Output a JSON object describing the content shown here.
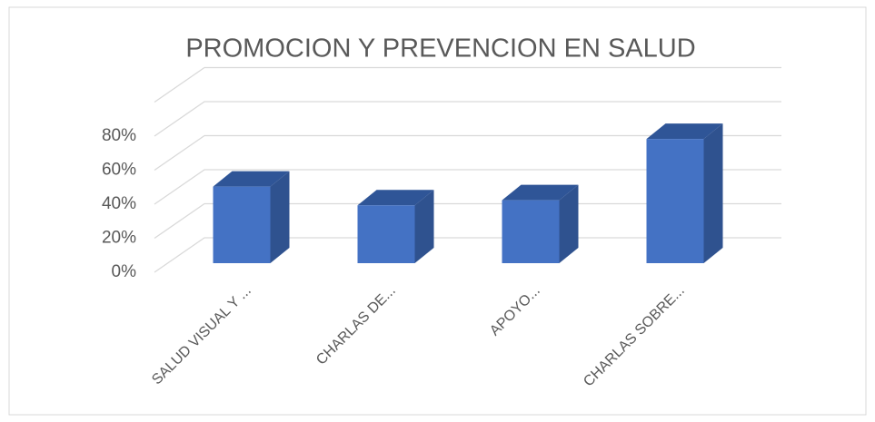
{
  "chart_data": {
    "type": "bar3d",
    "title": "PROMOCION Y PREVENCION EN SALUD",
    "categories": [
      "SALUD VISUAL Y ...",
      "CHARLAS DE...",
      "APOYO...",
      "CHARLAS SOBRE..."
    ],
    "values": [
      45,
      34,
      37,
      73
    ],
    "color": "#4472c4",
    "ylim": [
      0,
      100
    ],
    "yticks": [
      {
        "value": 0,
        "label": "0%"
      },
      {
        "value": 20,
        "label": "20%"
      },
      {
        "value": 40,
        "label": "40%"
      },
      {
        "value": 60,
        "label": "60%"
      },
      {
        "value": 80,
        "label": "80%"
      }
    ],
    "grid": true
  }
}
